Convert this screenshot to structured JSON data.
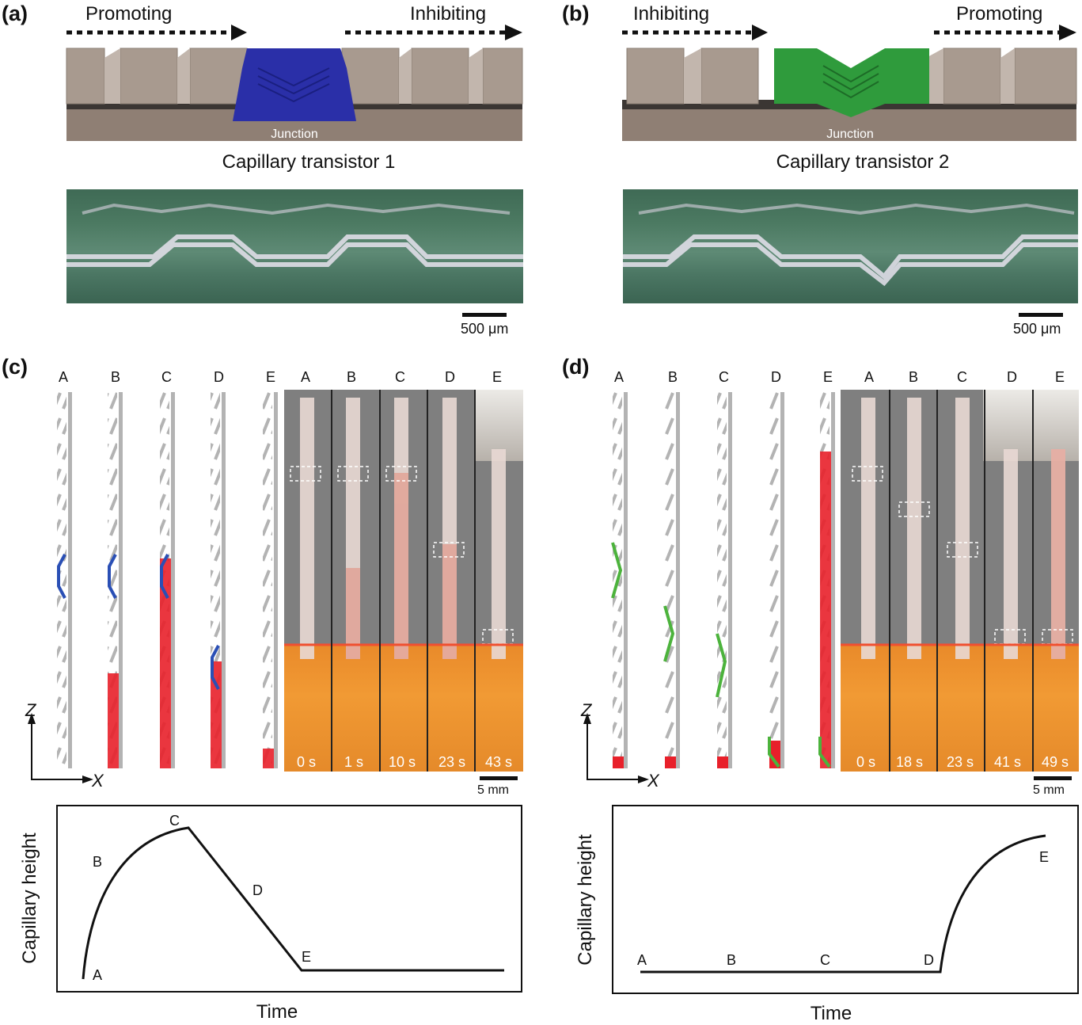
{
  "panels": {
    "a": {
      "label": "(a)",
      "left_arrow": "Promoting",
      "right_arrow": "Inhibiting",
      "junction": "Junction",
      "title": "Capillary transistor 1",
      "scale": "500 μm",
      "junction_color": "#2a2fa8"
    },
    "b": {
      "label": "(b)",
      "left_arrow": "Inhibiting",
      "right_arrow": "Promoting",
      "junction": "Junction",
      "title": "Capillary transistor 2",
      "scale": "500 μm",
      "junction_color": "#2f9b3c"
    },
    "c": {
      "label": "(c)",
      "columns": [
        "A",
        "B",
        "C",
        "D",
        "E"
      ],
      "photo_columns": [
        "A",
        "B",
        "C",
        "D",
        "E"
      ],
      "times": [
        "0 s",
        "1 s",
        "10 s",
        "23 s",
        "43 s"
      ],
      "scale": "5 mm",
      "axis_z": "Z",
      "axis_x": "X",
      "ylabel": "Capillary height",
      "xlabel": "Time",
      "point_labels": [
        "A",
        "B",
        "C",
        "D",
        "E"
      ]
    },
    "d": {
      "label": "(d)",
      "columns": [
        "A",
        "B",
        "C",
        "D",
        "E"
      ],
      "photo_columns": [
        "A",
        "B",
        "C",
        "D",
        "E"
      ],
      "times": [
        "0 s",
        "18 s",
        "23 s",
        "41 s",
        "49 s"
      ],
      "scale": "5 mm",
      "axis_z": "Z",
      "axis_x": "X",
      "ylabel": "Capillary height",
      "xlabel": "Time",
      "point_labels": [
        "A",
        "B",
        "C",
        "D",
        "E"
      ]
    }
  },
  "colors": {
    "liquid": "#e8202a",
    "structure": "#b3b3b3",
    "transistor1": "#2a4fb5",
    "transistor2": "#4cb33c"
  }
}
